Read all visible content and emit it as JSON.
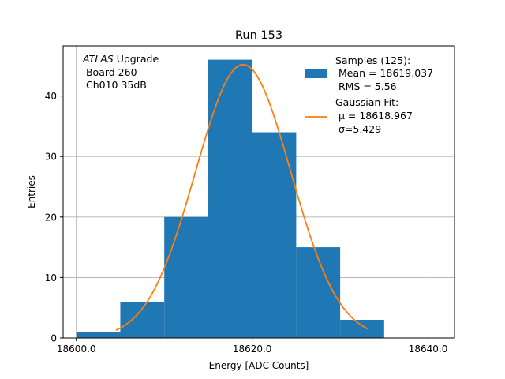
{
  "chart_data": {
    "type": "bar",
    "title": "Run 153",
    "xlabel": "Energy [ADC Counts]",
    "ylabel": "Entries",
    "xlim": [
      18598.5,
      18643.0
    ],
    "ylim": [
      0,
      48.3
    ],
    "x_ticks": [
      18600.0,
      18620.0,
      18640.0
    ],
    "x_tick_labels": [
      "18600.0",
      "18620.0",
      "18640.0"
    ],
    "y_ticks": [
      0,
      10,
      20,
      30,
      40
    ],
    "y_tick_labels": [
      "0",
      "10",
      "20",
      "30",
      "40"
    ],
    "grid": true,
    "bins": [
      {
        "left": 18600.0,
        "right": 18605.0,
        "count": 1
      },
      {
        "left": 18605.0,
        "right": 18610.0,
        "count": 6
      },
      {
        "left": 18610.0,
        "right": 18615.0,
        "count": 20
      },
      {
        "left": 18615.0,
        "right": 18620.0,
        "count": 46
      },
      {
        "left": 18620.0,
        "right": 18625.0,
        "count": 34
      },
      {
        "left": 18625.0,
        "right": 18630.0,
        "count": 15
      },
      {
        "left": 18630.0,
        "right": 18635.0,
        "count": 3
      }
    ],
    "fit": {
      "type": "gaussian",
      "mu": 18618.967,
      "sigma": 5.429,
      "amplitude": 45.2,
      "x_range": [
        18604.5,
        18633.2
      ]
    },
    "colors": {
      "histogram": "#1f77b4",
      "fit": "#ff7f0e",
      "grid": "#b0b0b0"
    },
    "annotation": {
      "line1_italic": "ATLAS",
      "line1_rest": " Upgrade",
      "line2": " Board 260",
      "line3": " Ch010 35dB"
    },
    "legend": {
      "position": "top-right",
      "samples": {
        "label": "Samples (125):",
        "mean": " Mean = 18619.037",
        "rms": " RMS = 5.56"
      },
      "gaussian": {
        "label": "Gaussian Fit:",
        "mu": " μ = 18618.967",
        "sigma": " σ=5.429"
      }
    }
  }
}
